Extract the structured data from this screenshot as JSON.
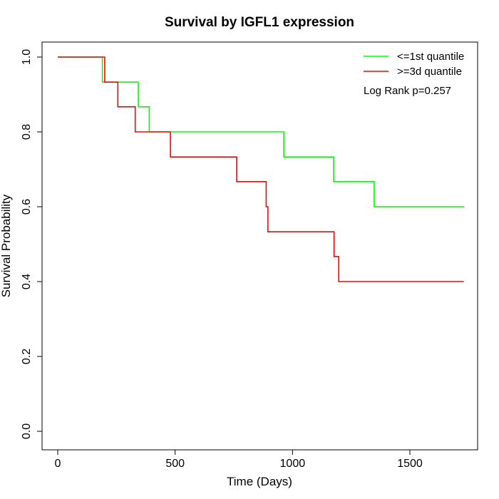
{
  "chart_data": {
    "type": "line",
    "step": true,
    "title": "Survival by IGFL1 expression",
    "xlabel": "Time (Days)",
    "ylabel": "Survival Probability",
    "xlim": [
      0,
      1800
    ],
    "ylim": [
      0,
      1.0
    ],
    "x_ticks": [
      0,
      500,
      1000,
      1500
    ],
    "y_ticks": [
      0.0,
      0.2,
      0.4,
      0.6,
      0.8,
      1.0
    ],
    "x_tick_labels": [
      "0",
      "500",
      "1000",
      "1500"
    ],
    "y_tick_labels": [
      "0.0",
      "0.2",
      "0.4",
      "0.6",
      "0.8",
      "1.0"
    ],
    "legend_position": "top-right",
    "grid": false,
    "annotation": "Log Rank p=0.257",
    "series": [
      {
        "name": "<=1st quantile",
        "color": "#00ff00",
        "points": [
          [
            0,
            1.0
          ],
          [
            190,
            1.0
          ],
          [
            190,
            0.933
          ],
          [
            343,
            0.933
          ],
          [
            343,
            0.867
          ],
          [
            390,
            0.867
          ],
          [
            390,
            0.8
          ],
          [
            963,
            0.8
          ],
          [
            963,
            0.733
          ],
          [
            1175,
            0.733
          ],
          [
            1175,
            0.667
          ],
          [
            1348,
            0.667
          ],
          [
            1348,
            0.6
          ],
          [
            1732,
            0.6
          ]
        ]
      },
      {
        "name": ">=3d quantile",
        "color": "#ff0000",
        "points": [
          [
            0,
            1.0
          ],
          [
            200,
            1.0
          ],
          [
            200,
            0.933
          ],
          [
            256,
            0.933
          ],
          [
            256,
            0.867
          ],
          [
            330,
            0.867
          ],
          [
            330,
            0.8
          ],
          [
            480,
            0.8
          ],
          [
            480,
            0.733
          ],
          [
            762,
            0.733
          ],
          [
            762,
            0.667
          ],
          [
            888,
            0.667
          ],
          [
            888,
            0.6
          ],
          [
            895,
            0.6
          ],
          [
            895,
            0.533
          ],
          [
            1177,
            0.533
          ],
          [
            1177,
            0.467
          ],
          [
            1197,
            0.467
          ],
          [
            1197,
            0.4
          ],
          [
            1730,
            0.4
          ]
        ]
      }
    ]
  }
}
